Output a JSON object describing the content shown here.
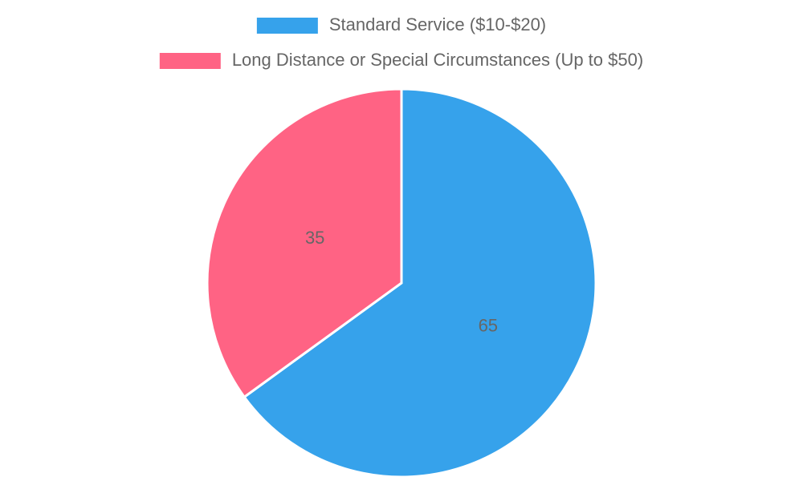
{
  "chart_data": {
    "type": "pie",
    "categories": [
      "Standard Service ($10-$20)",
      "Long Distance or Special Circumstances (Up to $50)"
    ],
    "values": [
      65,
      35
    ],
    "colors": [
      "#36a2eb",
      "#ff6384"
    ]
  }
}
